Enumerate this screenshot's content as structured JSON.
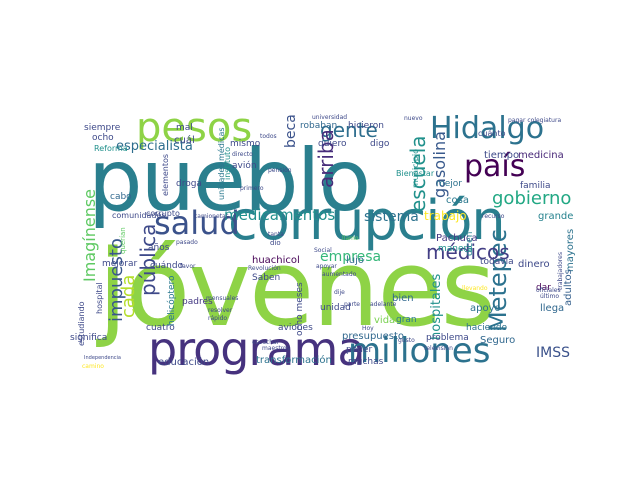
{
  "words": [
    {
      "key": "pueblo",
      "text": "pueblo",
      "color": "#2a7f8e"
    },
    {
      "key": "jovenes",
      "text": "jóvenes",
      "color": "#8ed346"
    },
    {
      "key": "corrupcion",
      "text": "corrupción",
      "color": "#2a7f8e"
    },
    {
      "key": "programa",
      "text": "programa",
      "color": "#46327e"
    },
    {
      "key": "pesos",
      "text": "pesos",
      "color": "#8ed346"
    },
    {
      "key": "hidalgo",
      "text": "Hidalgo",
      "color": "#2c728e"
    },
    {
      "key": "millones",
      "text": "millones",
      "color": "#2c728e"
    },
    {
      "key": "salud",
      "text": "salud",
      "color": "#3b528b"
    },
    {
      "key": "pais",
      "text": "país",
      "color": "#440154"
    },
    {
      "key": "metepec",
      "text": "Metepec",
      "color": "#2c728e"
    },
    {
      "key": "gobierno",
      "text": "gobierno",
      "color": "#22a884"
    },
    {
      "key": "gente",
      "text": "gente",
      "color": "#2e6e8e"
    },
    {
      "key": "escuela",
      "text": "escuela",
      "color": "#21918c"
    },
    {
      "key": "impuesto",
      "text": "impuesto",
      "color": "#39568c"
    },
    {
      "key": "medicamentos",
      "text": "medicamentos",
      "color": "#21908d"
    },
    {
      "key": "publica",
      "text": "pública",
      "color": "#3e4989"
    },
    {
      "key": "imaginense",
      "text": "Imagínense",
      "color": "#5ec962"
    },
    {
      "key": "medicos",
      "text": "médicos",
      "color": "#433e85"
    },
    {
      "key": "arriba",
      "text": "arriba",
      "color": "#472d7b"
    },
    {
      "key": "gasolina",
      "text": "gasolina",
      "color": "#38598c"
    },
    {
      "key": "beca",
      "text": "beca",
      "color": "#3b528b"
    },
    {
      "key": "especialista",
      "text": "especialista",
      "color": "#2e6e8e"
    },
    {
      "key": "imss",
      "text": "IMSS",
      "color": "#3b528b"
    },
    {
      "key": "empresa",
      "text": "empresa",
      "color": "#35b779"
    },
    {
      "key": "cada",
      "text": "cada",
      "color": "#b5de2b"
    },
    {
      "key": "sistema",
      "text": "sistema",
      "color": "#2c728e"
    },
    {
      "key": "trabajo",
      "text": "trabajo",
      "color": "#fde725"
    },
    {
      "key": "hospitales",
      "text": "hospitales",
      "color": "#21918c"
    },
    {
      "key": "presupuesto",
      "text": "presupuesto",
      "color": "#31688e"
    },
    {
      "key": "transformacion",
      "text": "transformación",
      "color": "#2c728e"
    },
    {
      "key": "educacion",
      "text": "educación",
      "color": "#3e4a89"
    },
    {
      "key": "aviones",
      "text": "aviones",
      "color": "#3e4989"
    },
    {
      "key": "huachicol",
      "text": "huachicol",
      "color": "#440154"
    },
    {
      "key": "medicina",
      "text": "medicina",
      "color": "#482878"
    },
    {
      "key": "tiempo",
      "text": "tiempo",
      "color": "#3e4a89"
    },
    {
      "key": "cosa",
      "text": "cosa",
      "color": "#2a788e"
    },
    {
      "key": "familia",
      "text": "familia",
      "color": "#3e4a89"
    },
    {
      "key": "mejor",
      "text": "mejor",
      "color": "#2c728e"
    },
    {
      "key": "grande",
      "text": "grande",
      "color": "#26828e"
    },
    {
      "key": "dinero",
      "text": "dinero",
      "color": "#3e4989"
    },
    {
      "key": "mayores",
      "text": "mayores",
      "color": "#2c728e"
    },
    {
      "key": "adultos",
      "text": "adultos",
      "color": "#35608d"
    },
    {
      "key": "llega",
      "text": "llega",
      "color": "#31688e"
    },
    {
      "key": "seguro",
      "text": "Seguro",
      "color": "#31688e"
    },
    {
      "key": "dar",
      "text": "dar",
      "color": "#440154"
    },
    {
      "key": "todavia",
      "text": "todavía",
      "color": "#3e4989"
    },
    {
      "key": "apoyo",
      "text": "apoyo",
      "color": "#2c728e"
    },
    {
      "key": "haciendo",
      "text": "haciendo",
      "color": "#2c728e"
    },
    {
      "key": "problema",
      "text": "problema",
      "color": "#3e4989"
    },
    {
      "key": "pachuca",
      "text": "Pachuca",
      "color": "#443983"
    },
    {
      "key": "manera",
      "text": "manera",
      "color": "#21918c"
    },
    {
      "key": "dicen",
      "text": "dicen",
      "color": "#26828e"
    },
    {
      "key": "bien",
      "text": "bien",
      "color": "#31688e"
    },
    {
      "key": "gran",
      "text": "gran",
      "color": "#2a788e"
    },
    {
      "key": "vida",
      "text": "vida",
      "color": "#7ad151"
    },
    {
      "key": "lujo",
      "text": "lujo",
      "color": "#31688e"
    },
    {
      "key": "unidad",
      "text": "unidad",
      "color": "#3e4989"
    },
    {
      "key": "poder",
      "text": "poder",
      "color": "#3e4989"
    },
    {
      "key": "muchas",
      "text": "muchas",
      "color": "#3e4989"
    },
    {
      "key": "ocho_meses",
      "text": "ocho meses",
      "color": "#3e4989"
    },
    {
      "key": "cuatro",
      "text": "cuatro",
      "color": "#3e4989"
    },
    {
      "key": "padres",
      "text": "padres",
      "color": "#443983"
    },
    {
      "key": "saben",
      "text": "Saben",
      "color": "#3e4989"
    },
    {
      "key": "revolucion",
      "text": "Revolución",
      "color": "#3e4989"
    },
    {
      "key": "helicoptero",
      "text": "helicóptero",
      "color": "#2a788e"
    },
    {
      "key": "anos",
      "text": "años",
      "color": "#3e4989"
    },
    {
      "key": "cuando",
      "text": "cuándo",
      "color": "#3e4989"
    },
    {
      "key": "mejorar",
      "text": "mejorar",
      "color": "#3e4989"
    },
    {
      "key": "comunidades",
      "text": "comunidades",
      "color": "#3e4989"
    },
    {
      "key": "significa",
      "text": "significa",
      "color": "#3e4989"
    },
    {
      "key": "hospital",
      "text": "hospital",
      "color": "#3e4989"
    },
    {
      "key": "estudiando",
      "text": "estudiando",
      "color": "#3e4989"
    },
    {
      "key": "siempre",
      "text": "siempre",
      "color": "#3e4989"
    },
    {
      "key": "ocho",
      "text": "ocho",
      "color": "#3e4989"
    },
    {
      "key": "reforma",
      "text": "Reforma",
      "color": "#21918c"
    },
    {
      "key": "cabo",
      "text": "cabo",
      "color": "#31688e"
    },
    {
      "key": "cual",
      "text": "cuál",
      "color": "#3e4989"
    },
    {
      "key": "mal",
      "text": "mal",
      "color": "#3e4989"
    },
    {
      "key": "droga",
      "text": "droga",
      "color": "#3e4989"
    },
    {
      "key": "mismo",
      "text": "mismo",
      "color": "#3e4989"
    },
    {
      "key": "avion",
      "text": "avión",
      "color": "#3e4989"
    },
    {
      "key": "quiero",
      "text": "quiero",
      "color": "#3e4989"
    },
    {
      "key": "hicieron",
      "text": "hicieron",
      "color": "#3e4989"
    },
    {
      "key": "robaban",
      "text": "robaban",
      "color": "#31688e"
    },
    {
      "key": "digo",
      "text": "digo",
      "color": "#3e4989"
    },
    {
      "key": "bienestar",
      "text": "Bienestar",
      "color": "#21918c"
    },
    {
      "key": "cuanto",
      "text": "cuánto",
      "color": "#3e4989"
    },
    {
      "key": "pagar_colegiatura",
      "text": "pagar colegiatura",
      "color": "#3e4989"
    },
    {
      "key": "corrupto",
      "text": "corrupto",
      "color": "#3e4989"
    },
    {
      "key": "unidades_medicas",
      "text": "unidades médicas",
      "color": "#2a788e"
    },
    {
      "key": "instituto",
      "text": "instituto",
      "color": "#21918c"
    },
    {
      "key": "elementos",
      "text": "elementos",
      "color": "#3e4989"
    },
    {
      "key": "municipio",
      "text": "municipio",
      "color": "#21918c"
    },
    {
      "key": "querian",
      "text": "querían",
      "color": "#5ec962"
    },
    {
      "key": "camioneta",
      "text": "camionetas",
      "color": "#3e4989"
    },
    {
      "key": "pasado",
      "text": "pasado",
      "color": "#3e4989"
    },
    {
      "key": "mensuales",
      "text": "mensuales",
      "color": "#3e4989"
    },
    {
      "key": "resolver",
      "text": "resolver",
      "color": "#3e4989"
    },
    {
      "key": "rapido",
      "text": "rápido",
      "color": "#3e4989"
    },
    {
      "key": "dio",
      "text": "dio",
      "color": "#3e4989"
    },
    {
      "key": "social",
      "text": "Social",
      "color": "#3e4989"
    },
    {
      "key": "llamo",
      "text": "llamo",
      "color": "#5ec962"
    },
    {
      "key": "dije",
      "text": "dije",
      "color": "#3e4989"
    },
    {
      "key": "parte",
      "text": "parte",
      "color": "#3e4989"
    },
    {
      "key": "adelante",
      "text": "adelante",
      "color": "#3e4989"
    },
    {
      "key": "gusto",
      "text": "gusto",
      "color": "#3e4989"
    },
    {
      "key": "television",
      "text": "televisión",
      "color": "#3e4989"
    },
    {
      "key": "hoy",
      "text": "Hoy",
      "color": "#3e4989"
    },
    {
      "key": "camino",
      "text": "camino",
      "color": "#fde725"
    },
    {
      "key": "independencia",
      "text": "Independencia",
      "color": "#3e4989"
    },
    {
      "key": "todos",
      "text": "todos",
      "color": "#3e4989"
    },
    {
      "key": "directo",
      "text": "directo",
      "color": "#3e4989"
    },
    {
      "key": "primero",
      "text": "primero",
      "color": "#3e4989"
    },
    {
      "key": "pension",
      "text": "pensión",
      "color": "#3e4989"
    },
    {
      "key": "recurso",
      "text": "recurso",
      "color": "#3e4989"
    },
    {
      "key": "trabajadores",
      "text": "trabajadores",
      "color": "#3e4989"
    },
    {
      "key": "oficiales",
      "text": "oficiales",
      "color": "#3e4989"
    },
    {
      "key": "ultimo",
      "text": "último",
      "color": "#3e4989"
    },
    {
      "key": "nuevo",
      "text": "nuevo",
      "color": "#3e4989"
    },
    {
      "key": "universidad",
      "text": "universidad",
      "color": "#3e4989"
    },
    {
      "key": "apoyar",
      "text": "apoyar",
      "color": "#3e4989"
    },
    {
      "key": "aumentado",
      "text": "aumentado",
      "color": "#3e4989"
    },
    {
      "key": "llevando",
      "text": "llevando",
      "color": "#fde725"
    },
    {
      "key": "escuchar",
      "text": "escuchar",
      "color": "#3e4989"
    },
    {
      "key": "maestros",
      "text": "maestros",
      "color": "#3e4989"
    },
    {
      "key": "favor",
      "text": "favor",
      "color": "#3e4989"
    },
    {
      "key": "tanta",
      "text": "tanta",
      "color": "#3e4989"
    }
  ]
}
